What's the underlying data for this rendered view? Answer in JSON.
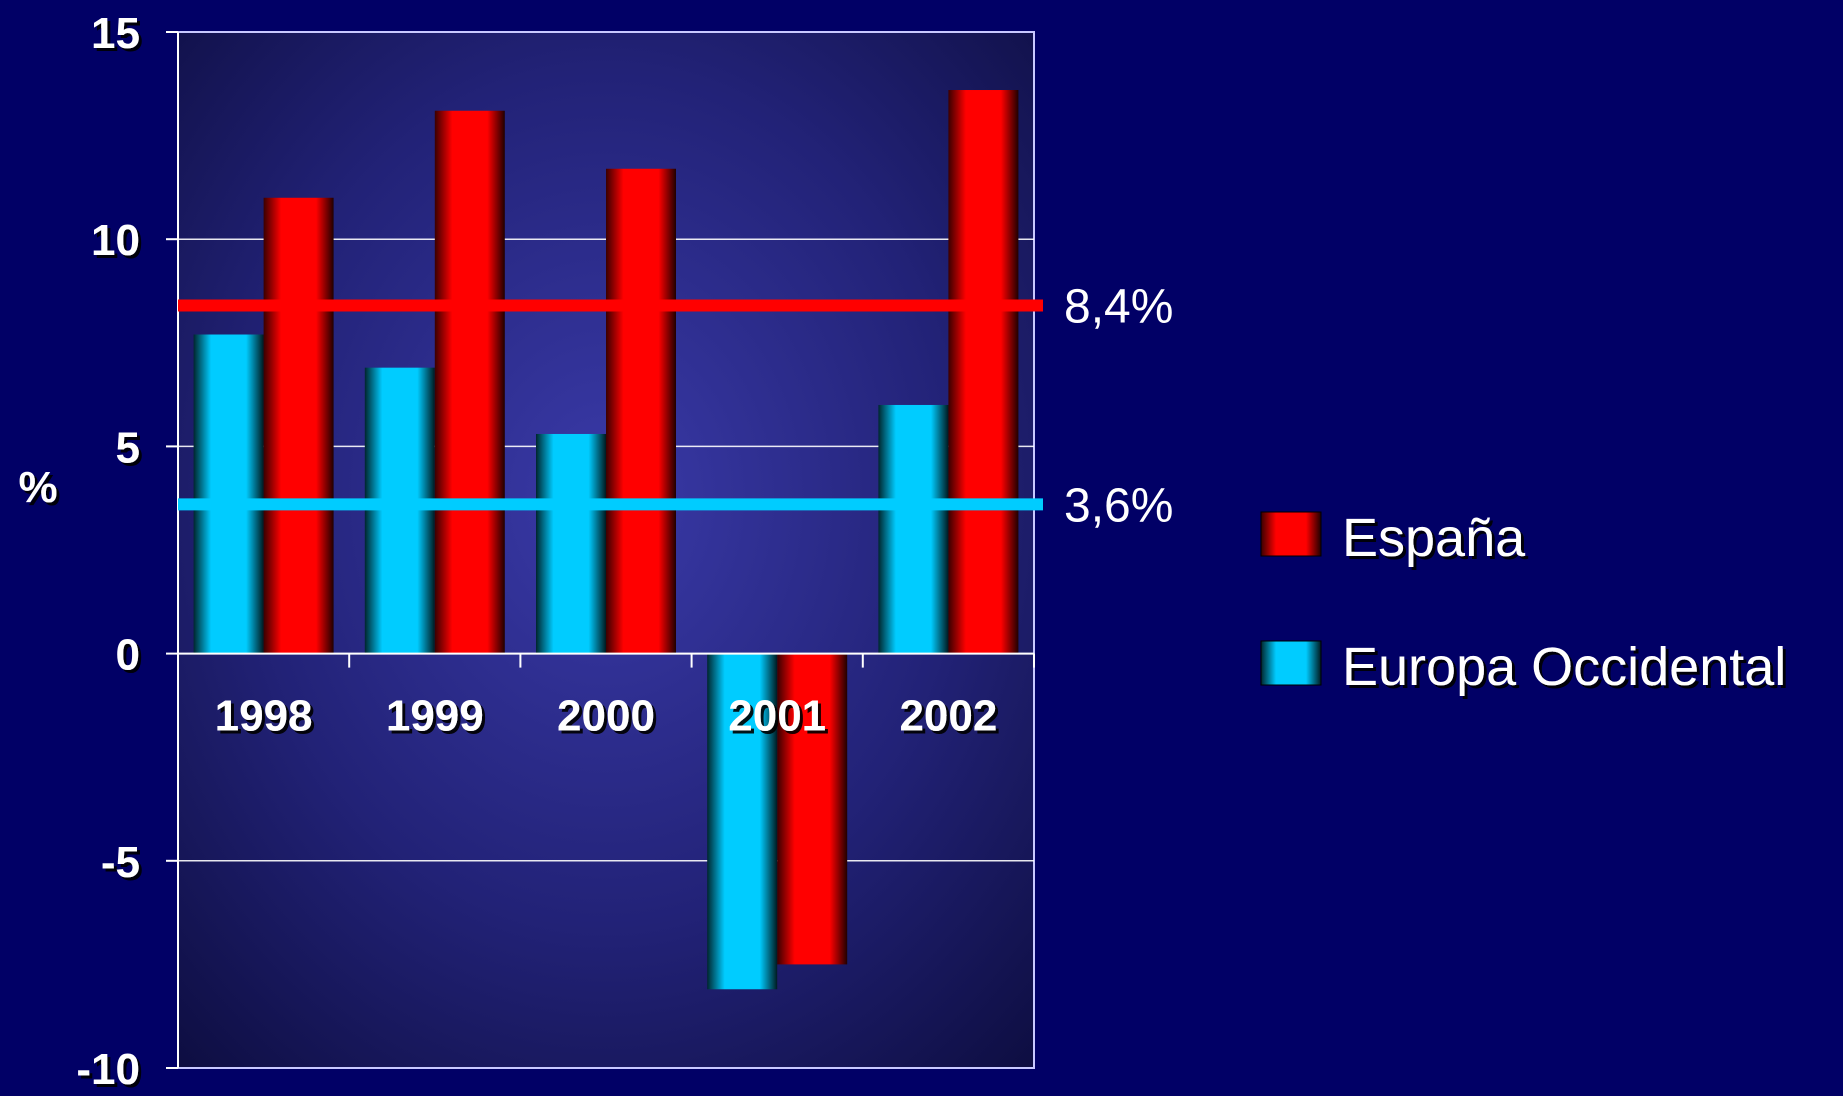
{
  "colors": {
    "background": "#010066",
    "espana": "#ff0000",
    "europa": "#00ccff",
    "gridline": "#ffffff"
  },
  "chart_data": {
    "type": "bar",
    "categories": [
      "1998",
      "1999",
      "2000",
      "2001",
      "2002"
    ],
    "series": [
      {
        "name": "Europa Occidental",
        "values": [
          7.7,
          6.9,
          5.3,
          -8.1,
          6.0
        ]
      },
      {
        "name": "España",
        "values": [
          11.0,
          13.1,
          11.7,
          -7.5,
          13.6
        ]
      }
    ],
    "ylabel": "%",
    "ylim": [
      -10,
      15
    ],
    "yticks": [
      "15",
      "10",
      "5",
      "0",
      "-5",
      "-10"
    ],
    "ytick_values": [
      15,
      10,
      5,
      0,
      -5,
      -10
    ],
    "grid": true,
    "legend_position": "right",
    "reference_lines": [
      {
        "series": "España",
        "value": 8.4,
        "label": "8,4%"
      },
      {
        "series": "Europa Occidental",
        "value": 3.6,
        "label": "3,6%"
      }
    ]
  }
}
